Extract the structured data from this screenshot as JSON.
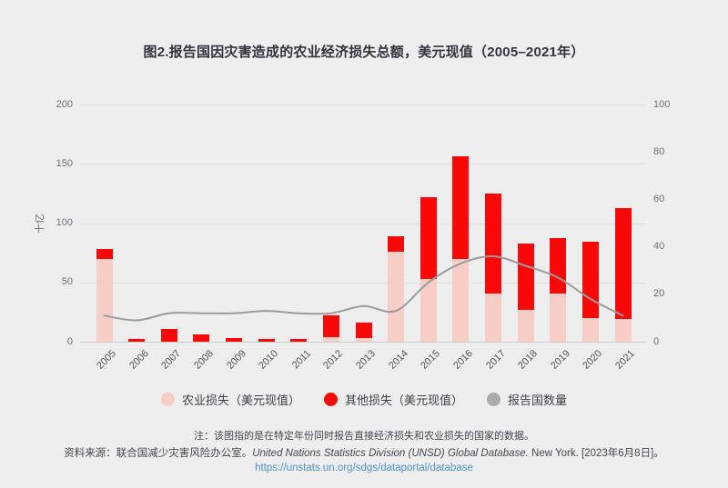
{
  "title": "图2.报告国因灾害造成的农业经济损失总额，美元现值（2005–2021年）",
  "chart_data": {
    "type": "bar",
    "stacked": true,
    "grid": true,
    "legend_position": "bottom",
    "categories": [
      "2005",
      "2006",
      "2007",
      "2008",
      "2009",
      "2010",
      "2011",
      "2012",
      "2013",
      "2014",
      "2015",
      "2016",
      "2017",
      "2018",
      "2019",
      "2020",
      "2021"
    ],
    "series": [
      {
        "name": "农业损失（美元现值）",
        "type": "bar",
        "axis": "left",
        "color": "#f7cec5",
        "values": [
          70,
          0,
          0,
          0,
          0,
          0,
          0,
          4,
          3,
          76,
          53,
          70,
          41,
          27,
          41,
          20,
          19
        ]
      },
      {
        "name": "其他损失（美元现值）",
        "type": "bar",
        "axis": "left",
        "color": "#f90808",
        "values": [
          8,
          2.5,
          11,
          6,
          3,
          2,
          2,
          18,
          13,
          13,
          69,
          86,
          84,
          56,
          46,
          64,
          94
        ]
      },
      {
        "name": "报告国数量",
        "type": "line",
        "axis": "right",
        "color": "#9b9b9d",
        "values": [
          11,
          9,
          12,
          12,
          12,
          13,
          12,
          12,
          15,
          13,
          25,
          33,
          36,
          32,
          27,
          18,
          11
        ]
      }
    ],
    "left_axis": {
      "label": "十亿",
      "ticks": [
        0,
        50,
        100,
        150,
        200
      ],
      "max": 200
    },
    "right_axis": {
      "label": "",
      "ticks": [
        0,
        20,
        40,
        60,
        80,
        100
      ],
      "max": 100
    }
  },
  "y_axis_label": "十亿",
  "legend": [
    {
      "label": "农业损失（美元现值）",
      "color": "#f7cec5"
    },
    {
      "label": "其他损失（美元现值）",
      "color": "#f90808"
    },
    {
      "label": "报告国数量",
      "color": "#ababab"
    }
  ],
  "notes": {
    "note": "注：该图指的是在特定年份同时报告直接经济损失和农业损失的国家的数据。",
    "source_prefix": "资料来源：联合国减少灾害风险办公室。",
    "source_italic": "United Nations Statistics Division (UNSD) Global Database.",
    "source_suffix": " New York. [2023年6月8日]。",
    "link": "https://unstats.un.org/sdgs/dataportal/database"
  },
  "colors": {
    "background": "#eeeeee",
    "grid": "#e0e0e0",
    "axis_line": "#c9c9cb",
    "tick_text": "#6f6f74",
    "title_text": "#33333b",
    "link": "#4e93c9"
  }
}
